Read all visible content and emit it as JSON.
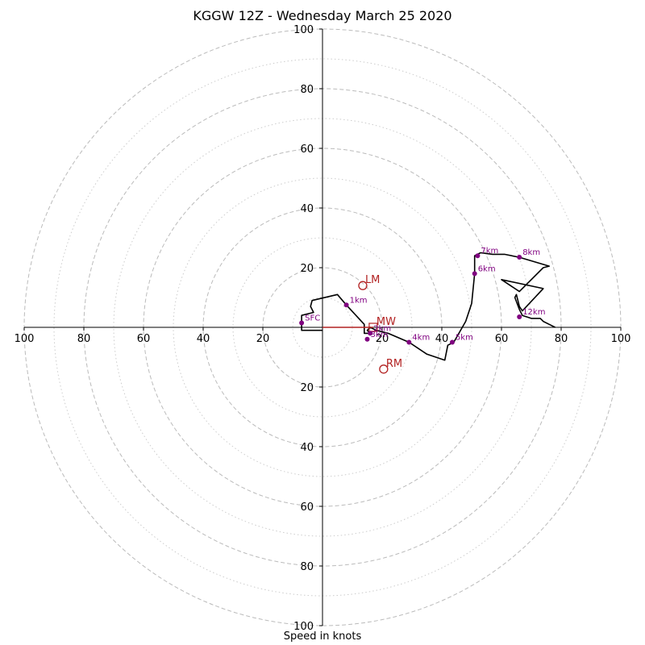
{
  "chart_data": {
    "type": "hodograph",
    "title": "KGGW 12Z - Wednesday March 25 2020",
    "xlabel": "Speed in knots",
    "max_speed": 100,
    "ring_step_major": 20,
    "ring_step_minor": 10,
    "tick_labels": [
      "100",
      "80",
      "60",
      "40",
      "20",
      "20",
      "40",
      "60",
      "80",
      "100"
    ],
    "y_tick_labels_top": [
      "100",
      "80",
      "60",
      "40",
      "20"
    ],
    "y_tick_labels_bottom": [
      "20",
      "40",
      "60",
      "80",
      "100"
    ],
    "colors": {
      "trace": "#000000",
      "points": "#800080",
      "storm": "#b22222",
      "rings": "#bbbbbb"
    },
    "trace": [
      [
        0,
        -1
      ],
      [
        -7,
        -1
      ],
      [
        -7,
        4
      ],
      [
        -3,
        5
      ],
      [
        -4,
        7
      ],
      [
        -3.5,
        9
      ],
      [
        5,
        11
      ],
      [
        8,
        7.5
      ],
      [
        14,
        1
      ],
      [
        14,
        -2
      ],
      [
        16,
        -2
      ],
      [
        15,
        -1
      ],
      [
        16,
        0
      ],
      [
        18,
        -1
      ],
      [
        22,
        -2
      ],
      [
        29,
        -5
      ],
      [
        35,
        -9
      ],
      [
        41,
        -11
      ],
      [
        42,
        -6
      ],
      [
        44,
        -5
      ],
      [
        48,
        2
      ],
      [
        50,
        8
      ],
      [
        51,
        18
      ],
      [
        51,
        24
      ],
      [
        53,
        25
      ],
      [
        57,
        24.5
      ],
      [
        61,
        24.5
      ],
      [
        66,
        23.5
      ],
      [
        76,
        20.5
      ],
      [
        74,
        20
      ],
      [
        66,
        12
      ],
      [
        60,
        16
      ],
      [
        74,
        13
      ],
      [
        67,
        5.5
      ],
      [
        66,
        7
      ],
      [
        65,
        11
      ],
      [
        64.5,
        10
      ],
      [
        66,
        6
      ],
      [
        67,
        4
      ],
      [
        70,
        3
      ],
      [
        73,
        3
      ],
      [
        74,
        2
      ],
      [
        76,
        1
      ],
      [
        78,
        0
      ]
    ],
    "points": [
      {
        "label": "SFC",
        "u": -7,
        "v": 1.5
      },
      {
        "label": "1km",
        "u": 8,
        "v": 7.5
      },
      {
        "label": "2km",
        "u": 16,
        "v": -2
      },
      {
        "label": "3km",
        "u": 15,
        "v": -4
      },
      {
        "label": "4km",
        "u": 29,
        "v": -5
      },
      {
        "label": "5km",
        "u": 43.5,
        "v": -5
      },
      {
        "label": "6km",
        "u": 51,
        "v": 18
      },
      {
        "label": "7km",
        "u": 52,
        "v": 24
      },
      {
        "label": "8km",
        "u": 66,
        "v": 23.5
      },
      {
        "label": "12km",
        "u": 66,
        "v": 3.5
      }
    ],
    "storm_motion": [
      {
        "label": "LM",
        "u": 13.5,
        "v": 14
      },
      {
        "label": "RM",
        "u": 20.5,
        "v": -14
      }
    ],
    "mean_wind": {
      "label": "MW",
      "u": 17,
      "v": 0
    }
  }
}
